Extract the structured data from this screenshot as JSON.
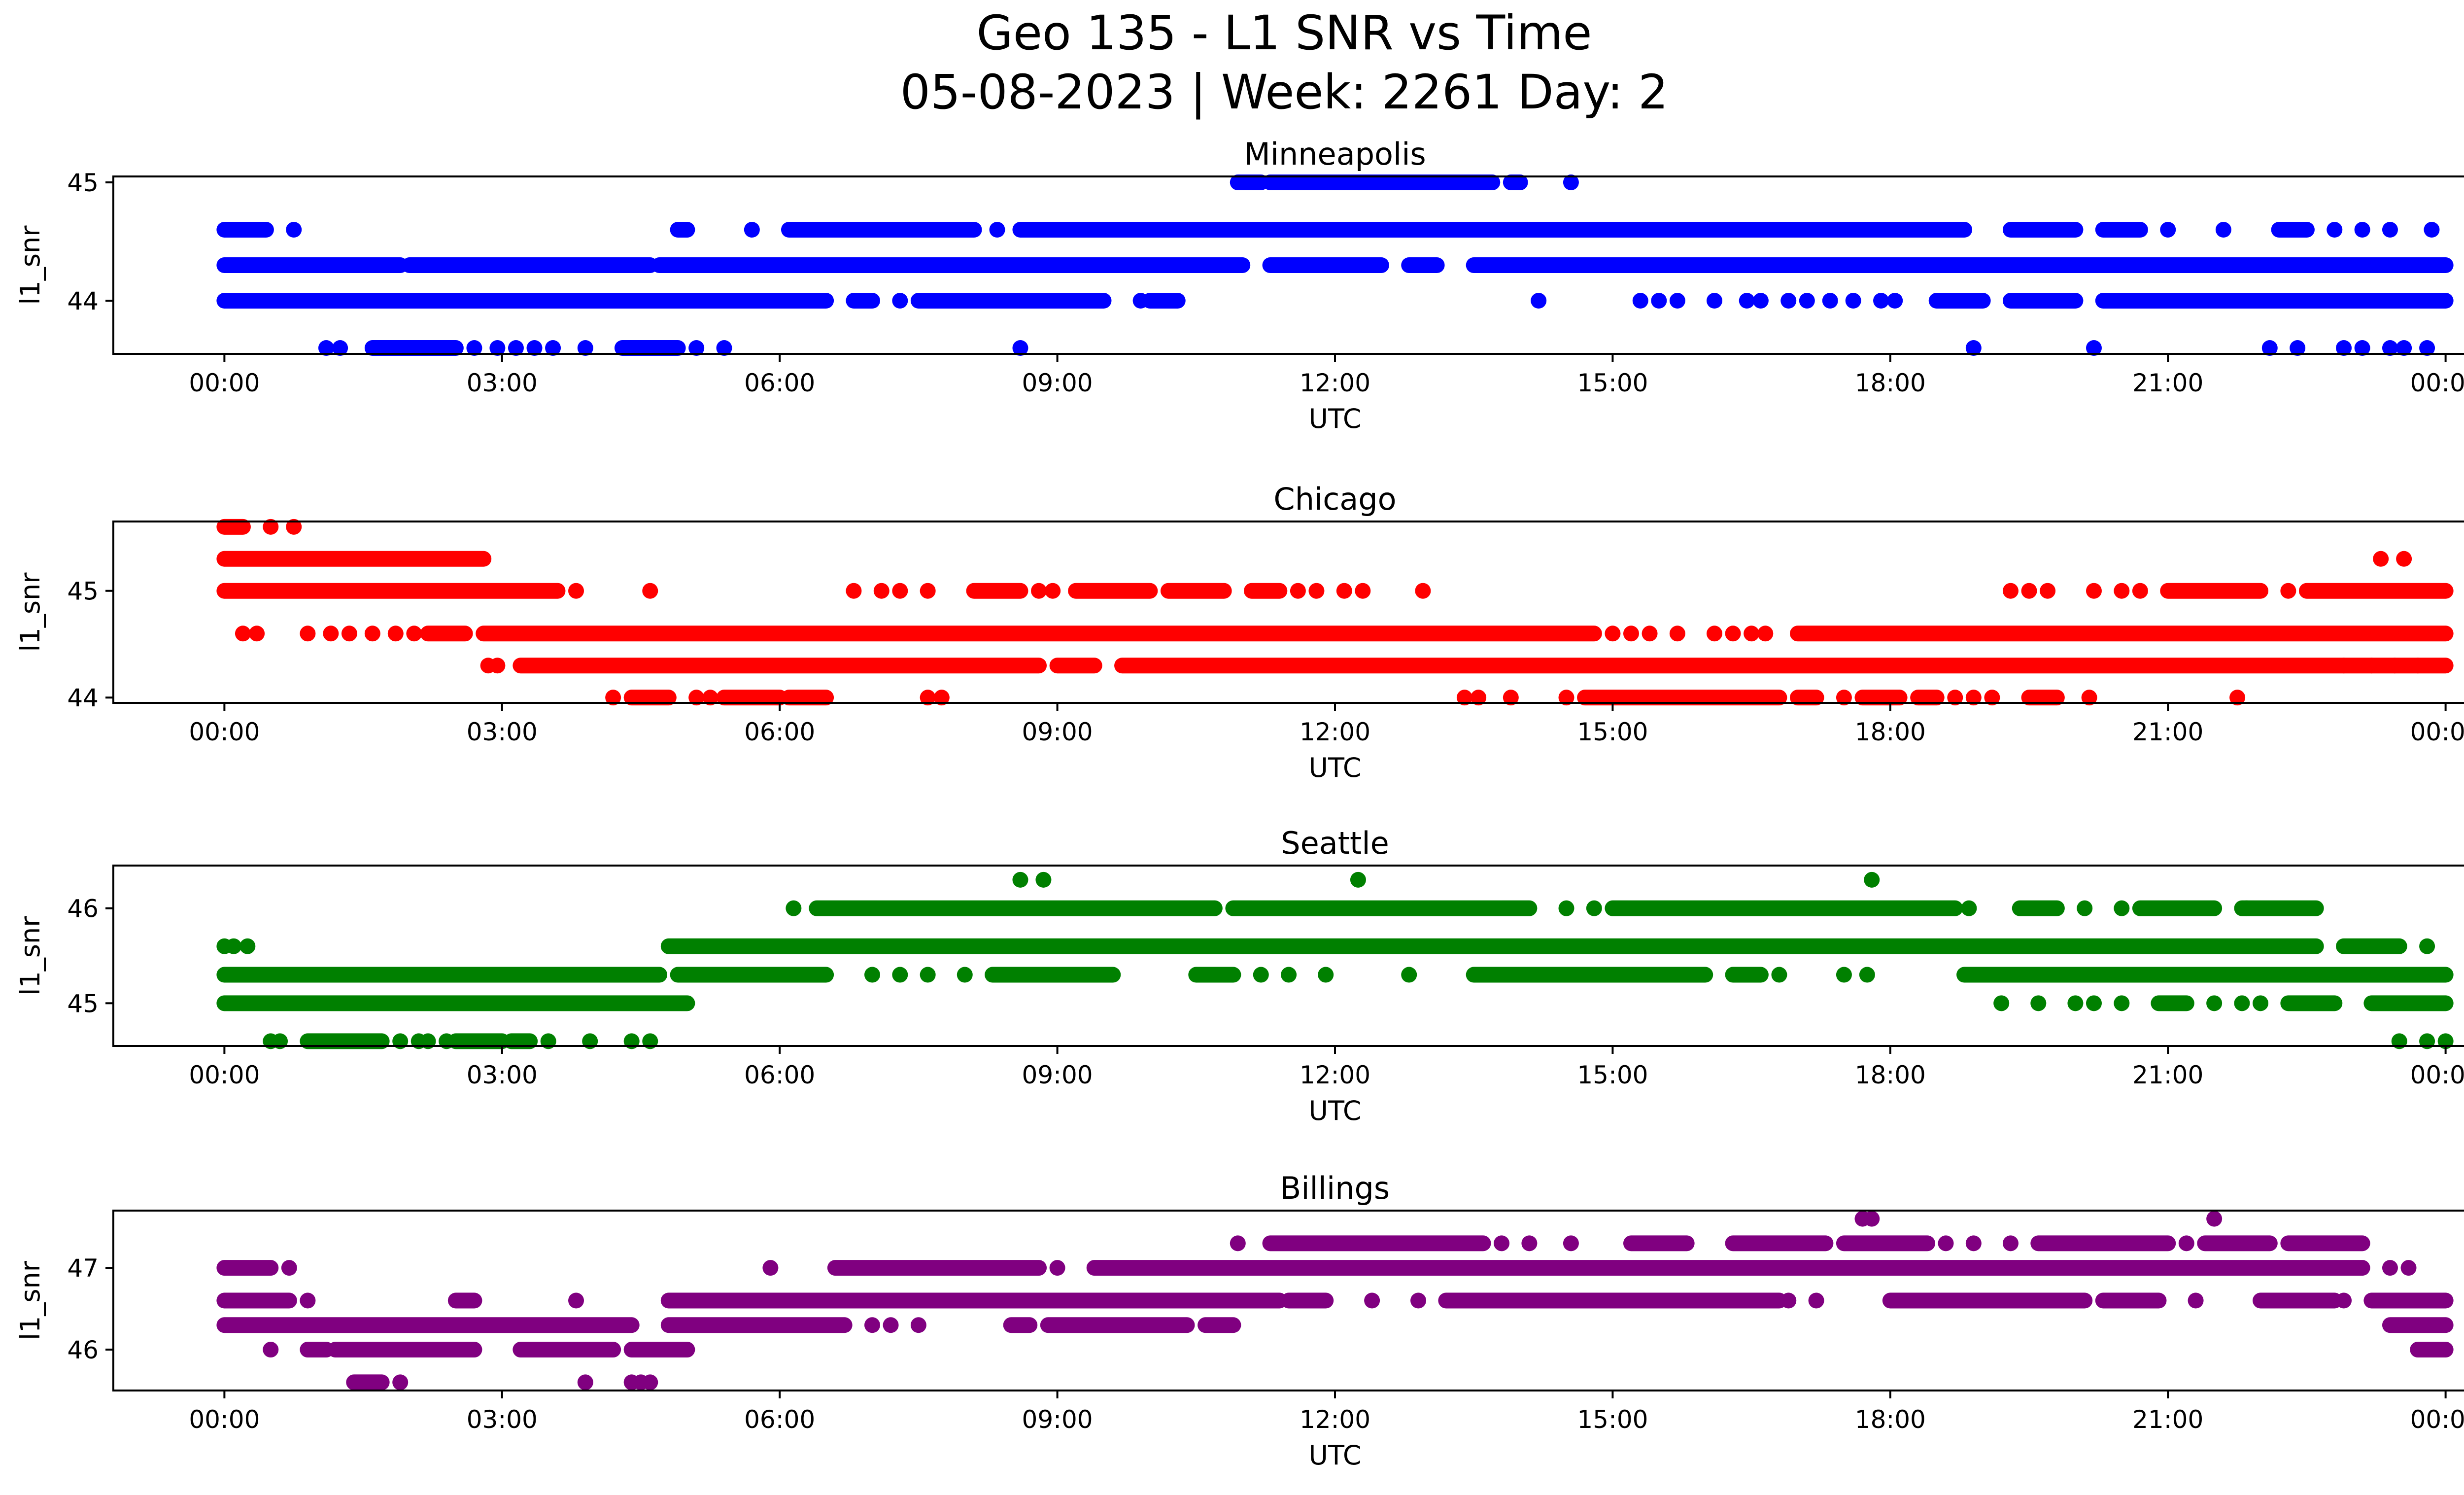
{
  "figure": {
    "title_line1": "Geo 135 - L1 SNR vs Time",
    "title_line2": "05-08-2023 | Week: 2261 Day: 2"
  },
  "chart_data": [
    {
      "type": "scatter",
      "title": "Minneapolis",
      "xlabel": "UTC",
      "ylabel": "l1_snr",
      "color": "#0000ff",
      "x_ticks": [
        "00:00",
        "03:00",
        "06:00",
        "09:00",
        "12:00",
        "15:00",
        "18:00",
        "21:00",
        "00:00"
      ],
      "x_range_hours": [
        -1.2,
        25.2
      ],
      "ylim": [
        43.55,
        45.05
      ],
      "y_ticks": [
        44,
        45
      ],
      "series": [
        {
          "levels": [
            {
              "y": 45.0,
              "segments": [
                [
                  10.95,
                  11.2
                ],
                [
                  11.3,
                  13.7
                ],
                [
                  13.9,
                  14.0
                ]
              ],
              "points": [
                14.55
              ]
            },
            {
              "y": 44.6,
              "segments": [
                [
                  0.0,
                  0.45
                ],
                [
                  4.9,
                  5.0
                ],
                [
                  6.1,
                  8.1
                ],
                [
                  8.6,
                  18.8
                ],
                [
                  19.3,
                  20.0
                ],
                [
                  20.3,
                  20.7
                ],
                [
                  22.2,
                  22.5
                ]
              ],
              "points": [
                0.75,
                5.7,
                8.35,
                21.0,
                21.6,
                22.8,
                23.1,
                23.4,
                23.85
              ]
            },
            {
              "y": 44.3,
              "segments": [
                [
                  0.0,
                  1.9
                ],
                [
                  2.0,
                  4.6
                ],
                [
                  4.7,
                  11.0
                ],
                [
                  11.3,
                  12.5
                ],
                [
                  12.8,
                  13.1
                ],
                [
                  13.5,
                  24.0
                ]
              ],
              "points": []
            },
            {
              "y": 44.0,
              "segments": [
                [
                  0.0,
                  6.5
                ],
                [
                  6.8,
                  7.0
                ],
                [
                  7.5,
                  9.5
                ],
                [
                  10.0,
                  10.3
                ],
                [
                  18.5,
                  19.0
                ],
                [
                  19.3,
                  20.0
                ],
                [
                  20.3,
                  24.0
                ]
              ],
              "points": [
                7.3,
                9.9,
                14.2,
                15.3,
                15.5,
                15.7,
                16.1,
                16.45,
                16.6,
                16.9,
                17.1,
                17.35,
                17.6,
                17.9,
                18.05
              ]
            },
            {
              "y": 43.6,
              "segments": [
                [
                  1.6,
                  2.5
                ],
                [
                  4.3,
                  4.9
                ]
              ],
              "points": [
                1.1,
                1.25,
                2.7,
                2.95,
                3.15,
                3.35,
                3.55,
                3.9,
                5.1,
                5.4,
                8.6,
                18.9,
                20.2,
                22.1,
                22.4,
                22.9,
                23.1,
                23.4,
                23.55,
                23.8
              ]
            }
          ]
        }
      ]
    },
    {
      "type": "scatter",
      "title": "Chicago",
      "xlabel": "UTC",
      "ylabel": "l1_snr",
      "color": "#ff0000",
      "x_ticks": [
        "00:00",
        "03:00",
        "06:00",
        "09:00",
        "12:00",
        "15:00",
        "18:00",
        "21:00",
        "00:00"
      ],
      "x_range_hours": [
        -1.2,
        25.2
      ],
      "ylim": [
        43.95,
        45.65
      ],
      "y_ticks": [
        44,
        45
      ],
      "series": [
        {
          "levels": [
            {
              "y": 45.6,
              "segments": [
                [
                  0.0,
                  0.2
                ]
              ],
              "points": [
                0.5,
                0.75
              ]
            },
            {
              "y": 45.3,
              "segments": [
                [
                  0.0,
                  2.8
                ]
              ],
              "points": [
                23.3,
                23.55
              ]
            },
            {
              "y": 45.0,
              "segments": [
                [
                  0.0,
                  3.6
                ],
                [
                  8.1,
                  8.6
                ],
                [
                  9.2,
                  10.0
                ],
                [
                  10.2,
                  10.8
                ],
                [
                  11.1,
                  11.4
                ],
                [
                  21.0,
                  22.0
                ],
                [
                  22.5,
                  24.0
                ]
              ],
              "points": [
                3.8,
                4.6,
                6.8,
                7.1,
                7.3,
                7.6,
                8.8,
                8.95,
                11.6,
                11.8,
                12.1,
                12.3,
                12.95,
                19.3,
                19.5,
                19.7,
                20.2,
                20.5,
                20.7,
                22.3
              ]
            },
            {
              "y": 44.6,
              "segments": [
                [
                  2.2,
                  2.6
                ],
                [
                  2.8,
                  14.8
                ],
                [
                  17.0,
                  24.0
                ]
              ],
              "points": [
                0.2,
                0.35,
                0.9,
                1.15,
                1.35,
                1.6,
                1.85,
                2.05,
                15.0,
                15.2,
                15.4,
                15.7,
                16.1,
                16.3,
                16.5,
                16.65
              ]
            },
            {
              "y": 44.3,
              "segments": [
                [
                  3.2,
                  8.8
                ],
                [
                  9.0,
                  9.4
                ],
                [
                  9.7,
                  24.0
                ]
              ],
              "points": [
                2.85,
                2.95,
                22.9,
                23.2,
                23.45,
                23.7
              ]
            },
            {
              "y": 44.0,
              "segments": [
                [
                  4.4,
                  4.8
                ],
                [
                  5.4,
                  6.0
                ],
                [
                  6.1,
                  6.5
                ],
                [
                  14.7,
                  16.8
                ],
                [
                  17.0,
                  17.2
                ],
                [
                  17.7,
                  18.1
                ],
                [
                  18.3,
                  18.5
                ],
                [
                  19.5,
                  19.8
                ]
              ],
              "points": [
                4.2,
                5.1,
                5.25,
                7.6,
                7.75,
                13.4,
                13.55,
                13.9,
                14.5,
                17.5,
                18.7,
                18.9,
                19.1,
                20.15,
                21.75
              ]
            }
          ]
        }
      ]
    },
    {
      "type": "scatter",
      "title": "Seattle",
      "xlabel": "UTC",
      "ylabel": "l1_snr",
      "color": "#008000",
      "x_ticks": [
        "00:00",
        "03:00",
        "06:00",
        "09:00",
        "12:00",
        "15:00",
        "18:00",
        "21:00",
        "00:00"
      ],
      "x_range_hours": [
        -1.2,
        25.2
      ],
      "ylim": [
        44.55,
        46.45
      ],
      "y_ticks": [
        45,
        46
      ],
      "series": [
        {
          "levels": [
            {
              "y": 46.3,
              "segments": [],
              "points": [
                8.6,
                8.85,
                12.25,
                17.8
              ]
            },
            {
              "y": 46.0,
              "segments": [
                [
                  6.4,
                  10.7
                ],
                [
                  10.9,
                  14.1
                ],
                [
                  15.0,
                  18.7
                ],
                [
                  19.4,
                  19.8
                ],
                [
                  20.7,
                  21.5
                ],
                [
                  21.8,
                  22.6
                ]
              ],
              "points": [
                6.15,
                14.5,
                14.8,
                18.85,
                20.1,
                20.5,
                21.85
              ]
            },
            {
              "y": 45.6,
              "segments": [
                [
                  4.8,
                  22.6
                ],
                [
                  22.9,
                  23.5
                ]
              ],
              "points": [
                0.0,
                0.1,
                0.25,
                23.8
              ]
            },
            {
              "y": 45.3,
              "segments": [
                [
                  0.0,
                  4.7
                ],
                [
                  4.9,
                  6.5
                ],
                [
                  8.3,
                  9.3
                ],
                [
                  9.3,
                  9.6
                ],
                [
                  10.5,
                  10.9
                ],
                [
                  13.5,
                  16.0
                ],
                [
                  16.3,
                  16.6
                ],
                [
                  18.8,
                  24.0
                ]
              ],
              "points": [
                7.0,
                7.3,
                7.6,
                8.0,
                8.8,
                11.2,
                11.5,
                11.9,
                12.8,
                16.8,
                17.5,
                17.75
              ]
            },
            {
              "y": 45.0,
              "segments": [
                [
                  0.0,
                  5.0
                ],
                [
                  20.9,
                  21.2
                ],
                [
                  22.3,
                  22.8
                ],
                [
                  23.2,
                  24.0
                ]
              ],
              "points": [
                19.2,
                19.6,
                20.0,
                20.2,
                20.5,
                21.5,
                21.8,
                22.0
              ]
            },
            {
              "y": 44.6,
              "segments": [
                [
                  0.9,
                  1.7
                ],
                [
                  2.5,
                  3.0
                ],
                [
                  3.1,
                  3.3
                ]
              ],
              "points": [
                0.5,
                0.6,
                1.9,
                2.1,
                2.2,
                2.4,
                3.5,
                3.95,
                4.4,
                4.6,
                23.5,
                23.8,
                24.0
              ]
            }
          ]
        }
      ]
    },
    {
      "type": "scatter",
      "title": "Billings",
      "xlabel": "UTC",
      "ylabel": "l1_snr",
      "color": "#800080",
      "x_ticks": [
        "00:00",
        "03:00",
        "06:00",
        "09:00",
        "12:00",
        "15:00",
        "18:00",
        "21:00",
        "00:00"
      ],
      "x_range_hours": [
        -1.2,
        25.2
      ],
      "ylim": [
        45.5,
        47.7
      ],
      "y_ticks": [
        46,
        47
      ],
      "series": [
        {
          "levels": [
            {
              "y": 47.6,
              "segments": [],
              "points": [
                17.7,
                17.8,
                21.5
              ]
            },
            {
              "y": 47.3,
              "segments": [
                [
                  11.3,
                  13.6
                ],
                [
                  15.2,
                  15.8
                ],
                [
                  16.3,
                  17.3
                ],
                [
                  17.5,
                  18.4
                ],
                [
                  19.6,
                  21.0
                ],
                [
                  21.4,
                  22.1
                ],
                [
                  22.3,
                  23.1
                ]
              ],
              "points": [
                10.95,
                13.8,
                14.1,
                14.55,
                18.6,
                18.9,
                19.3,
                21.2
              ]
            },
            {
              "y": 47.0,
              "segments": [
                [
                  0.0,
                  0.5
                ],
                [
                  6.6,
                  8.8
                ],
                [
                  9.4,
                  23.1
                ]
              ],
              "points": [
                0.7,
                5.9,
                9.0,
                23.4,
                23.6
              ]
            },
            {
              "y": 46.6,
              "segments": [
                [
                  0.0,
                  0.7
                ],
                [
                  2.5,
                  2.7
                ],
                [
                  4.8,
                  11.4
                ],
                [
                  11.5,
                  11.9
                ],
                [
                  13.2,
                  16.8
                ],
                [
                  18.0,
                  20.1
                ],
                [
                  20.3,
                  20.9
                ],
                [
                  22.0,
                  22.8
                ],
                [
                  23.2,
                  24.0
                ]
              ],
              "points": [
                0.9,
                3.8,
                12.4,
                12.9,
                16.9,
                17.2,
                21.3,
                22.9
              ]
            },
            {
              "y": 46.3,
              "segments": [
                [
                  0.0,
                  4.4
                ],
                [
                  4.8,
                  6.7
                ],
                [
                  8.5,
                  8.7
                ],
                [
                  8.9,
                  10.4
                ],
                [
                  10.6,
                  10.9
                ],
                [
                  23.4,
                  24.0
                ]
              ],
              "points": [
                7.0,
                7.2,
                7.5
              ]
            },
            {
              "y": 46.0,
              "segments": [
                [
                  0.9,
                  1.1
                ],
                [
                  1.2,
                  2.7
                ],
                [
                  3.2,
                  4.2
                ],
                [
                  4.4,
                  5.0
                ],
                [
                  23.7,
                  24.0
                ]
              ],
              "points": [
                0.5
              ]
            },
            {
              "y": 45.6,
              "segments": [
                [
                  1.4,
                  1.7
                ]
              ],
              "points": [
                1.9,
                3.9,
                4.4,
                4.5,
                4.6
              ]
            }
          ]
        }
      ]
    }
  ]
}
